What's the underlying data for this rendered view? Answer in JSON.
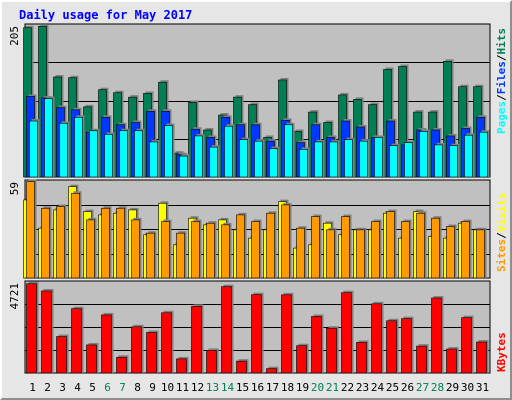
{
  "title": "Daily usage for May 2017",
  "colors": {
    "hits": "#007f54",
    "files": "#0038ff",
    "pages": "#00ffff",
    "visits": "#ffff00",
    "sites": "#ff9900",
    "kbytes": "#ff0000",
    "title": "#0000ff",
    "plot_bg": "#c0c0c0",
    "weekend_label": "#007f54",
    "weekday_label": "#000000"
  },
  "legend": {
    "pages": "Pages",
    "files": "Files",
    "hits": "Hits",
    "sites": "Sites",
    "visits": "Visits",
    "kbytes": "KBytes",
    "separator": "/"
  },
  "chart_data": [
    {
      "type": "bar",
      "panel": "top",
      "ymax_label": "205",
      "ylim": [
        0,
        205
      ],
      "categories": [
        "1",
        "2",
        "3",
        "4",
        "5",
        "6",
        "7",
        "8",
        "9",
        "10",
        "11",
        "12",
        "13",
        "14",
        "15",
        "16",
        "17",
        "18",
        "19",
        "20",
        "21",
        "22",
        "23",
        "24",
        "25",
        "26",
        "27",
        "28",
        "29",
        "30",
        "31"
      ],
      "weekend_days": [
        "6",
        "7",
        "13",
        "14",
        "20",
        "21",
        "27",
        "28"
      ],
      "series": [
        {
          "name": "Hits",
          "values": [
            200,
            202,
            134,
            133,
            94,
            117,
            113,
            107,
            112,
            127,
            32,
            100,
            63,
            83,
            107,
            97,
            53,
            130,
            61,
            87,
            73,
            110,
            104,
            97,
            144,
            148,
            87,
            87,
            155,
            121,
            121
          ]
        },
        {
          "name": "Files",
          "values": [
            108,
            106,
            93,
            90,
            60,
            80,
            70,
            73,
            88,
            88,
            30,
            64,
            53,
            80,
            70,
            70,
            48,
            76,
            46,
            70,
            53,
            75,
            67,
            53,
            75,
            43,
            63,
            63,
            55,
            65,
            80
          ]
        },
        {
          "name": "Pages",
          "values": [
            75,
            105,
            72,
            80,
            62,
            57,
            62,
            62,
            47,
            69,
            28,
            55,
            40,
            68,
            50,
            48,
            38,
            70,
            37,
            47,
            47,
            50,
            48,
            53,
            42,
            46,
            61,
            43,
            42,
            56,
            60
          ]
        }
      ]
    },
    {
      "type": "bar",
      "panel": "middle",
      "ymax_label": "59",
      "ylim": [
        0,
        59
      ],
      "categories": [
        "1",
        "2",
        "3",
        "4",
        "5",
        "6",
        "7",
        "8",
        "9",
        "10",
        "11",
        "12",
        "13",
        "14",
        "15",
        "16",
        "17",
        "18",
        "19",
        "20",
        "21",
        "22",
        "23",
        "24",
        "25",
        "26",
        "27",
        "28",
        "29",
        "30",
        "31"
      ],
      "series": [
        {
          "name": "Visits",
          "values": [
            47,
            30,
            41,
            55,
            40,
            38,
            39,
            41,
            26,
            45,
            20,
            36,
            32,
            35,
            29,
            24,
            29,
            46,
            18,
            20,
            33,
            26,
            29,
            29,
            39,
            24,
            40,
            25,
            24,
            33,
            29
          ]
        },
        {
          "name": "Sites",
          "values": [
            58,
            42,
            43,
            51,
            35,
            42,
            42,
            35,
            27,
            34,
            27,
            34,
            33,
            32,
            38,
            34,
            39,
            44,
            30,
            37,
            29,
            37,
            29,
            34,
            40,
            34,
            39,
            36,
            31,
            34,
            29
          ]
        }
      ]
    },
    {
      "type": "bar",
      "panel": "bottom",
      "ymax_label": "4721",
      "ylim": [
        0,
        4721
      ],
      "categories": [
        "1",
        "2",
        "3",
        "4",
        "5",
        "6",
        "7",
        "8",
        "9",
        "10",
        "11",
        "12",
        "13",
        "14",
        "15",
        "16",
        "17",
        "18",
        "19",
        "20",
        "21",
        "22",
        "23",
        "24",
        "25",
        "26",
        "27",
        "28",
        "29",
        "30",
        "31"
      ],
      "series": [
        {
          "name": "KBytes",
          "values": [
            4580,
            4210,
            1870,
            3300,
            1440,
            2980,
            808,
            2370,
            2080,
            3090,
            725,
            3420,
            1160,
            4430,
            610,
            4020,
            225,
            4010,
            1400,
            2900,
            2300,
            4120,
            1570,
            3550,
            2680,
            2790,
            1380,
            3850,
            1230,
            2840,
            1590
          ]
        }
      ]
    }
  ]
}
